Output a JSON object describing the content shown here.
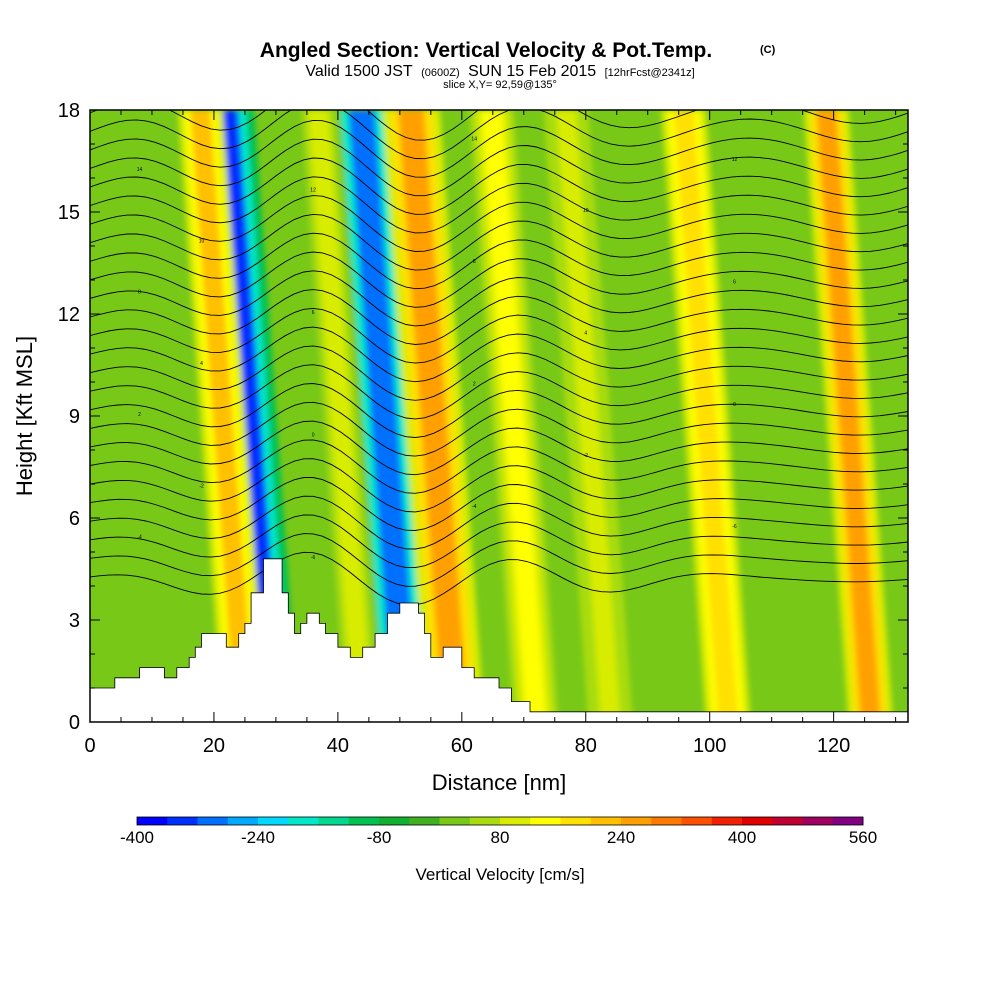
{
  "chart_data": {
    "type": "heatmap",
    "title": "Angled Section: Vertical Velocity & Pot.Temp.",
    "title_units": "(C)",
    "subtitle": {
      "valid": "Valid 1500 JST",
      "utc": "(0600Z)",
      "date": "SUN 15 Feb 2015",
      "forecast": "[12hrFcst@2341z]"
    },
    "slice_text": "slice X,Y= 92,59@135°",
    "xlabel": "Distance [nm]",
    "ylabel": "Height [Kft MSL]",
    "xlim": [
      0,
      132
    ],
    "ylim": [
      0,
      18
    ],
    "x_ticks": [
      0,
      20,
      40,
      60,
      80,
      100,
      120
    ],
    "y_ticks": [
      0,
      3,
      6,
      9,
      12,
      15,
      18
    ],
    "colorbar": {
      "title": "Vertical Velocity [cm/s]",
      "min": -400,
      "max": 560,
      "step": 40,
      "tick_labels": [
        -400,
        -240,
        -80,
        80,
        240,
        400,
        560
      ],
      "colors": [
        "#0000ff",
        "#0030ff",
        "#0070ff",
        "#00a8ff",
        "#00d8ff",
        "#00e8c8",
        "#00d890",
        "#00c050",
        "#10b030",
        "#40b020",
        "#78c818",
        "#a8dc10",
        "#d8ec00",
        "#ffff00",
        "#ffe000",
        "#ffc000",
        "#ffa000",
        "#ff7800",
        "#ff5000",
        "#f02000",
        "#e00000",
        "#c00030",
        "#a00060",
        "#800080"
      ]
    },
    "terrain_kft": [
      [
        0,
        1.0
      ],
      [
        4,
        1.0
      ],
      [
        4,
        1.3
      ],
      [
        8,
        1.3
      ],
      [
        8,
        1.6
      ],
      [
        12,
        1.6
      ],
      [
        12,
        1.3
      ],
      [
        14,
        1.3
      ],
      [
        14,
        1.6
      ],
      [
        16,
        1.6
      ],
      [
        16,
        1.9
      ],
      [
        17,
        1.9
      ],
      [
        17,
        2.2
      ],
      [
        18,
        2.2
      ],
      [
        18,
        2.6
      ],
      [
        22,
        2.6
      ],
      [
        22,
        2.2
      ],
      [
        24,
        2.2
      ],
      [
        24,
        2.6
      ],
      [
        25,
        2.6
      ],
      [
        25,
        2.9
      ],
      [
        26,
        2.9
      ],
      [
        26,
        3.8
      ],
      [
        28,
        3.8
      ],
      [
        28,
        4.8
      ],
      [
        31,
        4.8
      ],
      [
        31,
        3.8
      ],
      [
        32,
        3.8
      ],
      [
        32,
        3.2
      ],
      [
        33,
        3.2
      ],
      [
        33,
        2.6
      ],
      [
        34,
        2.6
      ],
      [
        34,
        2.9
      ],
      [
        35,
        2.9
      ],
      [
        35,
        3.2
      ],
      [
        37,
        3.2
      ],
      [
        37,
        2.9
      ],
      [
        38,
        2.9
      ],
      [
        38,
        2.6
      ],
      [
        40,
        2.6
      ],
      [
        40,
        2.2
      ],
      [
        42,
        2.2
      ],
      [
        42,
        1.9
      ],
      [
        44,
        1.9
      ],
      [
        44,
        2.2
      ],
      [
        46,
        2.2
      ],
      [
        46,
        2.6
      ],
      [
        48,
        2.6
      ],
      [
        48,
        3.2
      ],
      [
        50,
        3.2
      ],
      [
        50,
        3.5
      ],
      [
        53,
        3.5
      ],
      [
        53,
        3.2
      ],
      [
        54,
        3.2
      ],
      [
        54,
        2.6
      ],
      [
        55,
        2.6
      ],
      [
        55,
        1.9
      ],
      [
        57,
        1.9
      ],
      [
        57,
        2.2
      ],
      [
        60,
        2.2
      ],
      [
        60,
        1.6
      ],
      [
        62,
        1.6
      ],
      [
        62,
        1.3
      ],
      [
        66,
        1.3
      ],
      [
        66,
        1.0
      ],
      [
        68,
        1.0
      ],
      [
        68,
        0.6
      ],
      [
        71,
        0.6
      ],
      [
        71,
        0.3
      ],
      [
        132,
        0.3
      ]
    ],
    "updraft_bands": [
      {
        "x": 29,
        "w": -330
      },
      {
        "x": 51,
        "w": -290
      },
      {
        "x": 59,
        "w": 260
      },
      {
        "x": 103,
        "w": 180
      },
      {
        "x": 126,
        "w": 240
      },
      {
        "x": 72,
        "w": 120
      },
      {
        "x": 84,
        "w": 100
      },
      {
        "x": 25,
        "w": 200
      },
      {
        "x": 44,
        "w": 80
      }
    ],
    "isentrope_labels": [
      "14",
      "12",
      "10",
      "8",
      "6",
      "4",
      "2",
      "0",
      "-2",
      "-4",
      "-6"
    ]
  }
}
